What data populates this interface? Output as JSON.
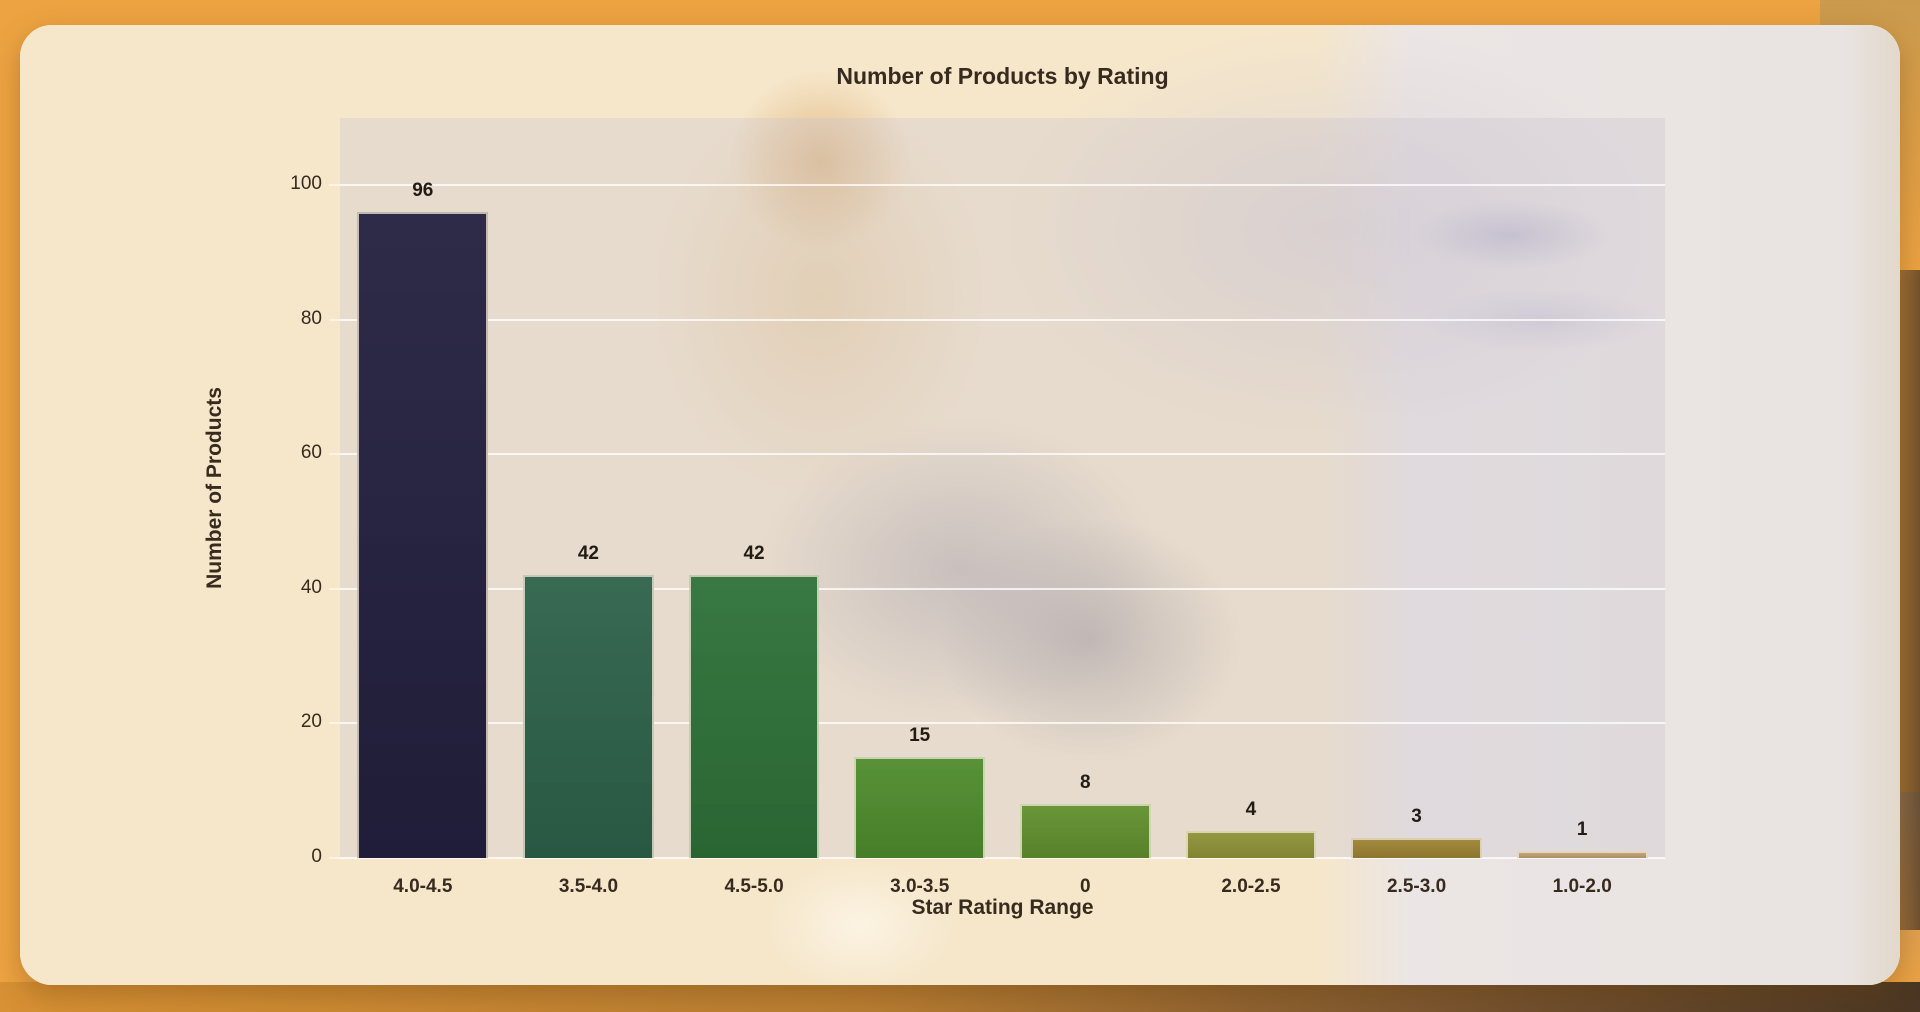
{
  "chart_data": {
    "type": "bar",
    "title": "Number of Products by Rating",
    "xlabel": "Star Rating Range",
    "ylabel": "Number of Products",
    "categories": [
      "4.0-4.5",
      "3.5-4.0",
      "4.5-5.0",
      "3.0-3.5",
      "0",
      "2.0-2.5",
      "2.5-3.0",
      "1.0-2.0"
    ],
    "values": [
      96,
      42,
      42,
      15,
      8,
      4,
      3,
      1
    ],
    "show_value_labels": true,
    "bar_colors": [
      "#23203f",
      "#2d624a",
      "#2e7138",
      "#4f8c2d",
      "#62902f",
      "#8f9237",
      "#9d8334",
      "#bfa071"
    ],
    "ylim": [
      0,
      110
    ],
    "yticks": [
      0,
      20,
      40,
      60,
      80,
      100
    ],
    "grid": "horizontal",
    "legend_position": "none"
  },
  "theme": {
    "page_background": "#eda342",
    "card_background": "#f6e7cb",
    "plot_overlay_color": "rgba(203,196,207,0.34)",
    "gridline_color": "rgba(255,255,255,0.75)",
    "tick_mark_color": "rgba(252,244,229,0.9)",
    "bar_edge_color": "rgba(245,237,219,0.75)",
    "text_color": "#362b1e",
    "value_label_color": "#221c14"
  }
}
